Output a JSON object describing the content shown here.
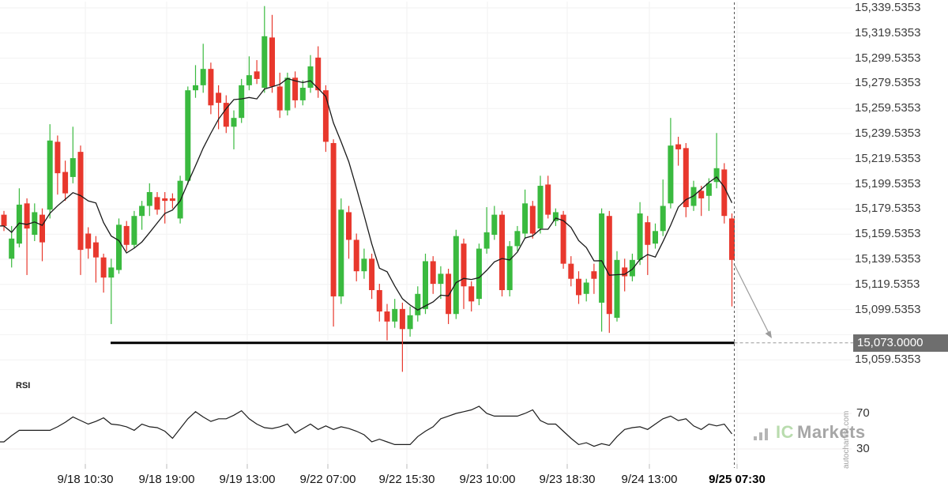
{
  "price_axis": {
    "ticks": [
      {
        "label": "15,339.5353",
        "value": 15339.5353
      },
      {
        "label": "15,319.5353",
        "value": 15319.5353
      },
      {
        "label": "15,299.5353",
        "value": 15299.5353
      },
      {
        "label": "15,279.5353",
        "value": 15279.5353
      },
      {
        "label": "15,259.5353",
        "value": 15259.5353
      },
      {
        "label": "15,239.5353",
        "value": 15239.5353
      },
      {
        "label": "15,219.5353",
        "value": 15219.5353
      },
      {
        "label": "15,199.5353",
        "value": 15199.5353
      },
      {
        "label": "15,179.5353",
        "value": 15179.5353
      },
      {
        "label": "15,159.5353",
        "value": 15159.5353
      },
      {
        "label": "15,139.5353",
        "value": 15139.5353
      },
      {
        "label": "15,119.5353",
        "value": 15119.5353
      },
      {
        "label": "15,099.5353",
        "value": 15099.5353
      },
      {
        "label": "15,059.5353",
        "value": 15059.5353
      }
    ],
    "hidden_tick_value": 15079.5353,
    "highlight": {
      "label": "15,073.0000",
      "value": 15073.0
    }
  },
  "time_axis": {
    "labels": [
      "9/18 10:30",
      "9/18 19:00",
      "9/19 13:00",
      "9/22 07:00",
      "9/22 15:30",
      "9/23 10:00",
      "9/23 18:30",
      "9/24 13:00",
      "9/25 07:30"
    ],
    "emphasis_last": true
  },
  "rsi": {
    "label": "RSI",
    "level_labels": [
      "70",
      "30"
    ],
    "levels": [
      70,
      30
    ]
  },
  "watermark": {
    "icon": "bar-chart-icon",
    "brand_prefix": "IC",
    "brand_suffix": "Markets",
    "vertical_text": "autochartist.com"
  },
  "chart_data": {
    "type": "candlestick",
    "title": "",
    "x_tick_labels": [
      "9/18 10:30",
      "9/18 19:00",
      "9/19 13:00",
      "9/22 07:00",
      "9/22 15:30",
      "9/23 10:00",
      "9/23 18:30",
      "9/24 13:00",
      "9/25 07:30"
    ],
    "price_tick_labels": [
      "15,339.5353",
      "15,319.5353",
      "15,299.5353",
      "15,279.5353",
      "15,259.5353",
      "15,239.5353",
      "15,219.5353",
      "15,199.5353",
      "15,179.5353",
      "15,159.5353",
      "15,139.5353",
      "15,119.5353",
      "15,099.5353",
      "15,059.5353"
    ],
    "ylim": [
      15049.5,
      15345.5
    ],
    "grid": true,
    "support_line": {
      "price": 15073.0,
      "label": "15,073.0000",
      "style": "solid-black-thick, dashed extension to price label"
    },
    "forecast_arrow": {
      "direction": "down-right",
      "from_price": 15136,
      "to_price": 15073
    },
    "moving_average": "black smoothed line over candles (approx. 7-period SMA of close)",
    "ohlc": [
      [
        15175,
        15178,
        15162,
        15166
      ],
      [
        15140,
        15166,
        15133,
        15156
      ],
      [
        15152,
        15196,
        15149,
        15183
      ],
      [
        15184,
        15188,
        15127,
        15164
      ],
      [
        15159,
        15184,
        15154,
        15177
      ],
      [
        15175,
        15180,
        15138,
        15153
      ],
      [
        15179,
        15247,
        15172,
        15234
      ],
      [
        15233,
        15238,
        15191,
        15208
      ],
      [
        15209,
        15218,
        15186,
        15192
      ],
      [
        15205,
        15245,
        15200,
        15220
      ],
      [
        15225,
        15230,
        15127,
        15147
      ],
      [
        15160,
        15165,
        15140,
        15148
      ],
      [
        15153,
        15158,
        15121,
        15141
      ],
      [
        15141,
        15144,
        15113,
        15125
      ],
      [
        15125,
        15140,
        15088,
        15133
      ],
      [
        15131,
        15172,
        15128,
        15167
      ],
      [
        15166,
        15170,
        15146,
        15151
      ],
      [
        15151,
        15178,
        15148,
        15174
      ],
      [
        15174,
        15186,
        15163,
        15182
      ],
      [
        15182,
        15200,
        15174,
        15193
      ],
      [
        15189,
        15193,
        15175,
        15179
      ],
      [
        15188,
        15193,
        15168,
        15186
      ],
      [
        15188,
        15192,
        15180,
        15186
      ],
      [
        15172,
        15206,
        15168,
        15202
      ],
      [
        15202,
        15277,
        15199,
        15274
      ],
      [
        15274,
        15294,
        15268,
        15278
      ],
      [
        15278,
        15311,
        15272,
        15291
      ],
      [
        15291,
        15296,
        15255,
        15262
      ],
      [
        15272,
        15278,
        15243,
        15264
      ],
      [
        15264,
        15270,
        15240,
        15245
      ],
      [
        15245,
        15258,
        15227,
        15252
      ],
      [
        15252,
        15283,
        15248,
        15278
      ],
      [
        15278,
        15301,
        15274,
        15286
      ],
      [
        15289,
        15298,
        15279,
        15283
      ],
      [
        15276,
        15341,
        15272,
        15317
      ],
      [
        15316,
        15334,
        15272,
        15277
      ],
      [
        15277,
        15288,
        15252,
        15258
      ],
      [
        15258,
        15288,
        15254,
        15284
      ],
      [
        15284,
        15289,
        15260,
        15266
      ],
      [
        15266,
        15282,
        15262,
        15276
      ],
      [
        15276,
        15302,
        15272,
        15293
      ],
      [
        15300,
        15309,
        15268,
        15274
      ],
      [
        15274,
        15278,
        15225,
        15233
      ],
      [
        15232,
        15235,
        15086,
        15110
      ],
      [
        15110,
        15188,
        15104,
        15179
      ],
      [
        15177,
        15182,
        15140,
        15155
      ],
      [
        15155,
        15160,
        15122,
        15130
      ],
      [
        15130,
        15148,
        15124,
        15140
      ],
      [
        15140,
        15144,
        15108,
        15115
      ],
      [
        15115,
        15120,
        15090,
        15098
      ],
      [
        15098,
        15104,
        15075,
        15090
      ],
      [
        15090,
        15108,
        15085,
        15100
      ],
      [
        15100,
        15105,
        15050,
        15084
      ],
      [
        15084,
        15102,
        15078,
        15095
      ],
      [
        15095,
        15118,
        15090,
        15112
      ],
      [
        15100,
        15144,
        15096,
        15138
      ],
      [
        15138,
        15142,
        15112,
        15120
      ],
      [
        15120,
        15134,
        15108,
        15128
      ],
      [
        15128,
        15132,
        15088,
        15096
      ],
      [
        15096,
        15163,
        15092,
        15158
      ],
      [
        15152,
        15156,
        15100,
        15118
      ],
      [
        15118,
        15122,
        15098,
        15106
      ],
      [
        15108,
        15152,
        15103,
        15148
      ],
      [
        15148,
        15181,
        15144,
        15161
      ],
      [
        15159,
        15182,
        15155,
        15175
      ],
      [
        15175,
        15178,
        15110,
        15115
      ],
      [
        15115,
        15154,
        15110,
        15150
      ],
      [
        15150,
        15166,
        15146,
        15162
      ],
      [
        15160,
        15195,
        15156,
        15184
      ],
      [
        15182,
        15186,
        15156,
        15160
      ],
      [
        15164,
        15206,
        15160,
        15198
      ],
      [
        15199,
        15206,
        15172,
        15175
      ],
      [
        15170,
        15180,
        15166,
        15177
      ],
      [
        15175,
        15178,
        15132,
        15136
      ],
      [
        15136,
        15142,
        15118,
        15124
      ],
      [
        15124,
        15130,
        15104,
        15111
      ],
      [
        15112,
        15124,
        15106,
        15121
      ],
      [
        15130,
        15136,
        15112,
        15124
      ],
      [
        15105,
        15180,
        15082,
        15176
      ],
      [
        15174,
        15178,
        15081,
        15096
      ],
      [
        15093,
        15146,
        15090,
        15139
      ],
      [
        15133,
        15140,
        15114,
        15126
      ],
      [
        15126,
        15144,
        15122,
        15139
      ],
      [
        15139,
        15185,
        15135,
        15176
      ],
      [
        15169,
        15174,
        15127,
        15151
      ],
      [
        15152,
        15168,
        15148,
        15162
      ],
      [
        15162,
        15203,
        15158,
        15182
      ],
      [
        15184,
        15252,
        15180,
        15230
      ],
      [
        15231,
        15237,
        15214,
        15227
      ],
      [
        15228,
        15232,
        15173,
        15181
      ],
      [
        15182,
        15202,
        15178,
        15197
      ],
      [
        15194,
        15198,
        15174,
        15188
      ],
      [
        15190,
        15204,
        15178,
        15200
      ],
      [
        15201,
        15240,
        15196,
        15212
      ],
      [
        15211,
        15216,
        15168,
        15174
      ],
      [
        15172,
        15176,
        15102,
        15139
      ]
    ],
    "rsi": {
      "label": "RSI",
      "levels": [
        70,
        30
      ],
      "values": [
        38,
        45,
        51,
        51,
        51,
        51,
        51,
        55,
        60,
        66,
        62,
        58,
        61,
        65,
        58,
        57,
        55,
        51,
        58,
        55,
        54,
        50,
        42,
        53,
        64,
        72,
        66,
        61,
        64,
        64,
        68,
        73,
        64,
        58,
        54,
        53,
        55,
        58,
        48,
        53,
        58,
        52,
        56,
        52,
        55,
        53,
        50,
        46,
        38,
        41,
        38,
        35,
        35,
        35,
        44,
        50,
        55,
        64,
        67,
        70,
        72,
        74,
        78,
        70,
        67,
        67,
        67,
        67,
        70,
        74,
        62,
        58,
        58,
        50,
        42,
        35,
        37,
        33,
        36,
        34,
        44,
        52,
        54,
        55,
        52,
        58,
        64,
        67,
        62,
        64,
        56,
        52,
        58,
        56,
        58,
        47
      ]
    },
    "colors": {
      "up": "#3aba3f",
      "down": "#e8382d",
      "ma_line": "#1a1a1a",
      "support": "#000000",
      "arrow": "#9b9b9b",
      "grid": "#f2f2f2",
      "highlight_bg": "#6e6e6e"
    }
  }
}
